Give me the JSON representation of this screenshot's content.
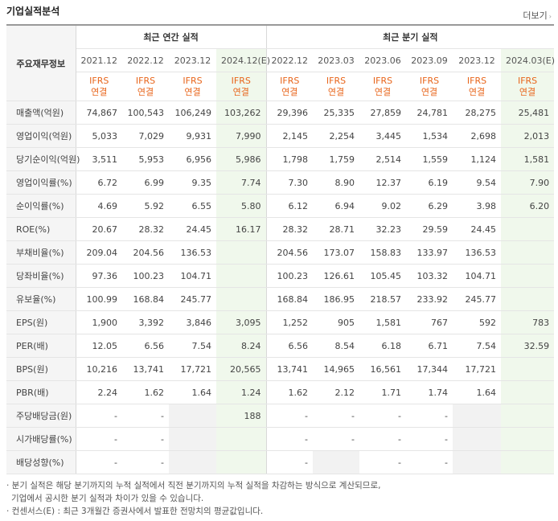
{
  "header": {
    "title": "기업실적분석",
    "more_label": "더보기",
    "more_arrow": "›"
  },
  "table": {
    "row_head": "주요재무정보",
    "annual_group": "최근 연간 실적",
    "quarter_group": "최근 분기 실적",
    "periods": [
      "2021.12",
      "2022.12",
      "2023.12",
      "2024.12(E)",
      "2022.12",
      "2023.03",
      "2023.06",
      "2023.09",
      "2023.12",
      "2024.03(E)"
    ],
    "basis_top": "IFRS",
    "basis_bottom": "연결",
    "rows": [
      {
        "label": "매출액(억원)",
        "values": [
          "74,867",
          "100,543",
          "106,249",
          "103,262",
          "29,396",
          "25,335",
          "27,859",
          "24,781",
          "28,275",
          "25,481"
        ]
      },
      {
        "label": "영업이익(억원)",
        "values": [
          "5,033",
          "7,029",
          "9,931",
          "7,990",
          "2,145",
          "2,254",
          "3,445",
          "1,534",
          "2,698",
          "2,013"
        ]
      },
      {
        "label": "당기순이익(억원)",
        "values": [
          "3,511",
          "5,953",
          "6,956",
          "5,986",
          "1,798",
          "1,759",
          "2,514",
          "1,559",
          "1,124",
          "1,581"
        ]
      },
      {
        "label": "영업이익률(%)",
        "values": [
          "6.72",
          "6.99",
          "9.35",
          "7.74",
          "7.30",
          "8.90",
          "12.37",
          "6.19",
          "9.54",
          "7.90"
        ]
      },
      {
        "label": "순이익률(%)",
        "values": [
          "4.69",
          "5.92",
          "6.55",
          "5.80",
          "6.12",
          "6.94",
          "9.02",
          "6.29",
          "3.98",
          "6.20"
        ]
      },
      {
        "label": "ROE(%)",
        "values": [
          "20.67",
          "28.32",
          "24.45",
          "16.17",
          "28.32",
          "28.71",
          "32.23",
          "29.59",
          "24.45",
          ""
        ]
      },
      {
        "label": "부채비율(%)",
        "values": [
          "209.04",
          "204.56",
          "136.53",
          "",
          "204.56",
          "173.07",
          "158.83",
          "133.97",
          "136.53",
          ""
        ]
      },
      {
        "label": "당좌비율(%)",
        "values": [
          "97.36",
          "100.23",
          "104.71",
          "",
          "100.23",
          "126.61",
          "105.45",
          "103.32",
          "104.71",
          ""
        ]
      },
      {
        "label": "유보율(%)",
        "values": [
          "100.99",
          "168.84",
          "245.77",
          "",
          "168.84",
          "186.95",
          "218.57",
          "233.92",
          "245.77",
          ""
        ]
      },
      {
        "label": "EPS(원)",
        "values": [
          "1,900",
          "3,392",
          "3,846",
          "3,095",
          "1,252",
          "905",
          "1,581",
          "767",
          "592",
          "783"
        ]
      },
      {
        "label": "PER(배)",
        "values": [
          "12.05",
          "6.56",
          "7.54",
          "8.24",
          "6.56",
          "8.54",
          "6.18",
          "6.71",
          "7.54",
          "32.59"
        ]
      },
      {
        "label": "BPS(원)",
        "values": [
          "10,216",
          "13,741",
          "17,721",
          "20,565",
          "13,741",
          "14,965",
          "16,561",
          "17,344",
          "17,721",
          ""
        ]
      },
      {
        "label": "PBR(배)",
        "values": [
          "2.24",
          "1.62",
          "1.64",
          "1.24",
          "1.62",
          "2.12",
          "1.71",
          "1.74",
          "1.64",
          ""
        ]
      },
      {
        "label": "주당배당금(원)",
        "values": [
          "-",
          "-",
          "",
          "188",
          "-",
          "-",
          "-",
          "-",
          "",
          ""
        ]
      },
      {
        "label": "시가배당률(%)",
        "values": [
          "-",
          "-",
          "",
          "",
          "-",
          "-",
          "-",
          "-",
          "",
          ""
        ]
      },
      {
        "label": "배당성향(%)",
        "values": [
          "-",
          "-",
          "",
          "",
          "-",
          "",
          "-",
          "-",
          "",
          ""
        ]
      }
    ]
  },
  "notes": [
    "· 분기 실적은 해당 분기까지의 누적 실적에서 직전 분기까지의 누적 실적을 차감하는 방식으로 계산되므로,",
    "  기업에서 공시한 분기 실적과 차이가 있을 수 있습니다.",
    "· 컨센서스(E) : 최근 3개월간 증권사에서 발표한 전망치의 평균값입니다."
  ]
}
